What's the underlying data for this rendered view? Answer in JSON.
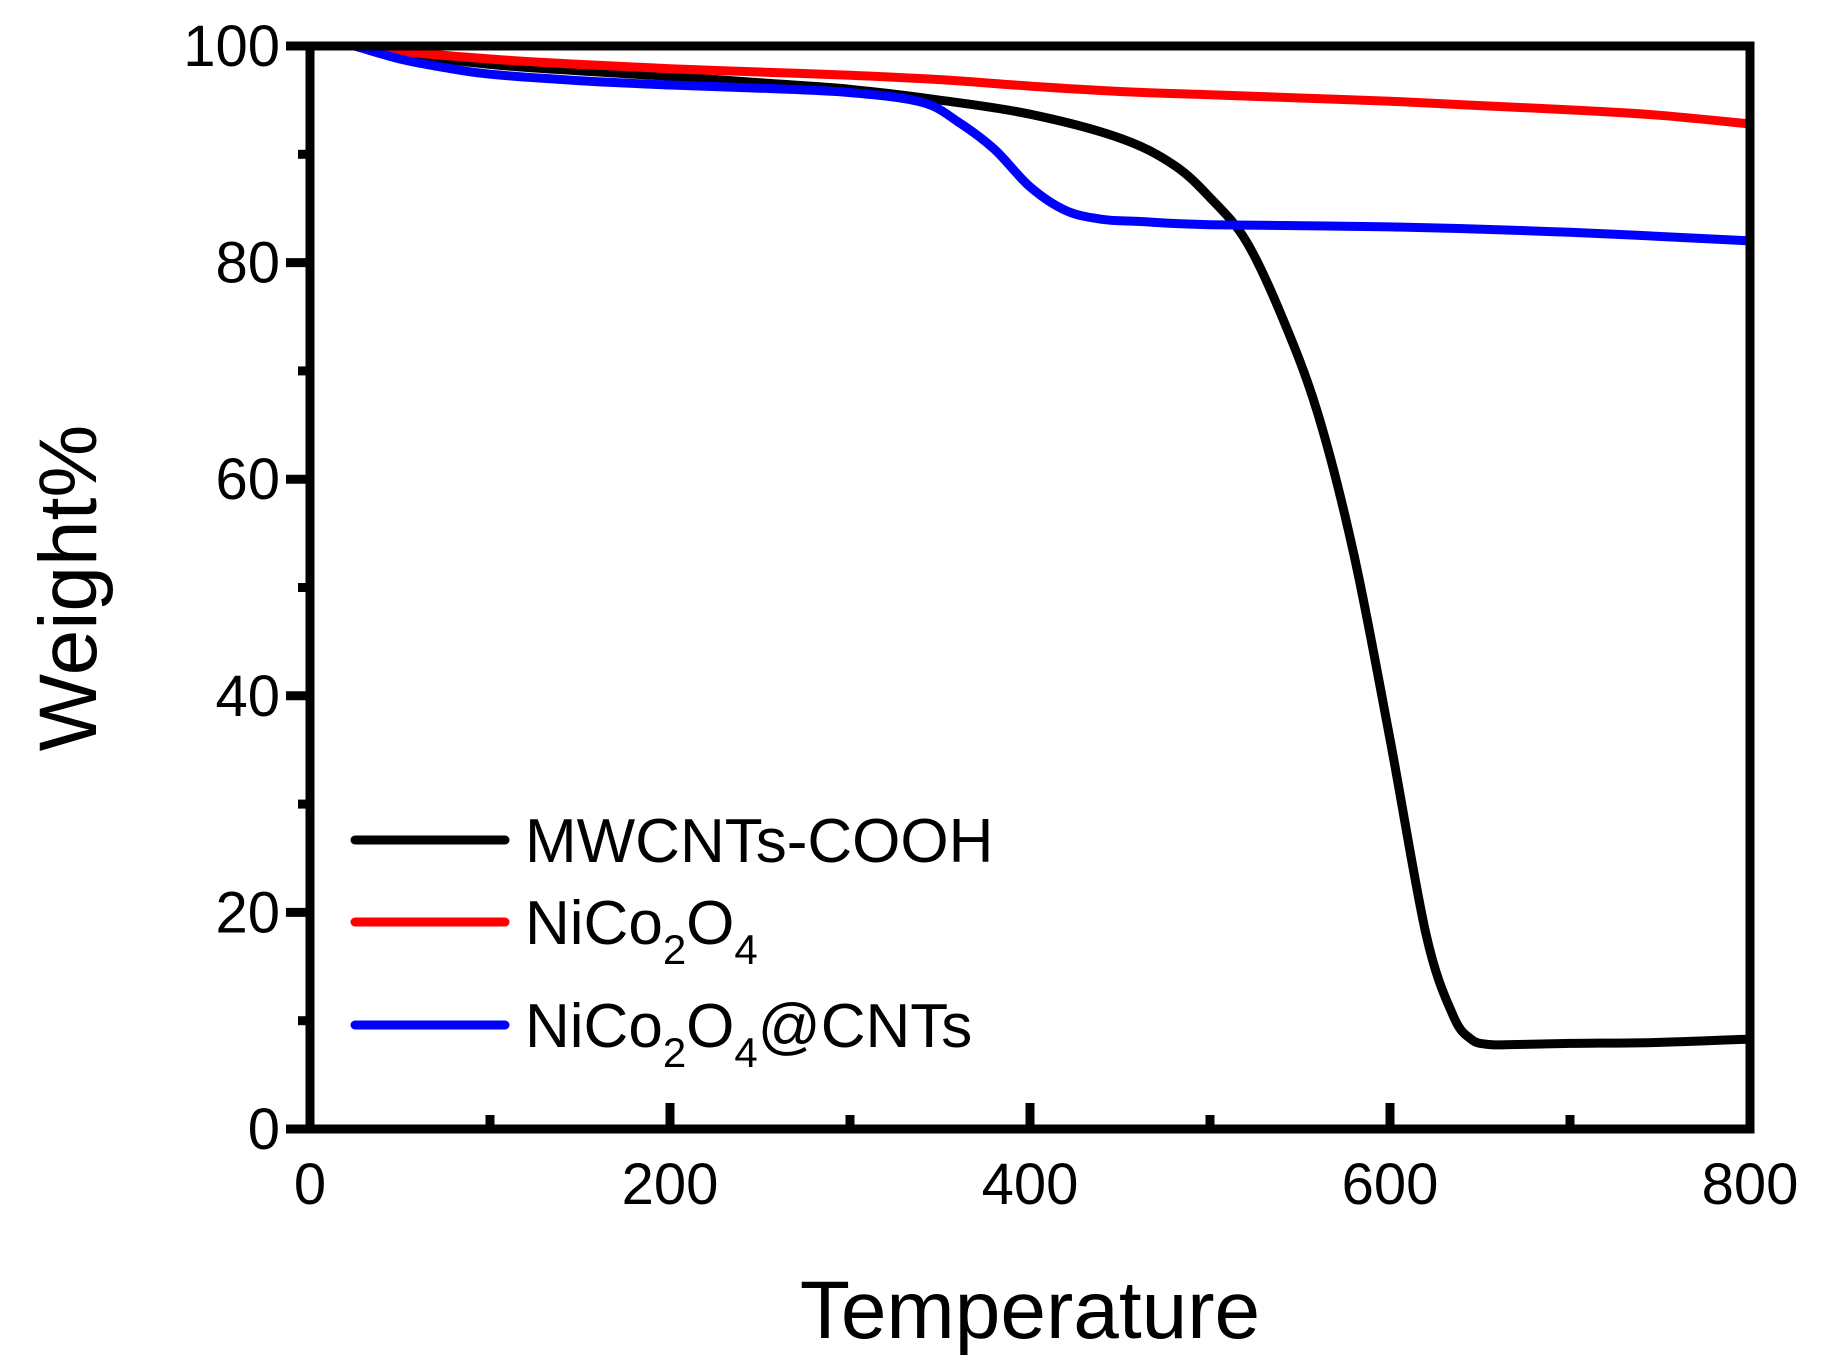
{
  "chart_data": {
    "type": "line",
    "title": "",
    "xlabel": "Temperature",
    "ylabel": "Weight%",
    "xlim": [
      0,
      800
    ],
    "ylim": [
      0,
      100
    ],
    "xticks": [
      0,
      200,
      400,
      600,
      800
    ],
    "yticks": [
      0,
      20,
      40,
      60,
      80,
      100
    ],
    "x_tick_labels": [
      "0",
      "200",
      "400",
      "600",
      "800"
    ],
    "y_tick_labels": [
      "0",
      "20",
      "40",
      "60",
      "80",
      "100"
    ],
    "legend_position": "bottom-left",
    "series": [
      {
        "name": "MWCNTs-COOH",
        "legend": {
          "main": "MWCNTs-COOH",
          "parts": []
        },
        "color": "#000000",
        "x": [
          25,
          50,
          100,
          150,
          200,
          250,
          300,
          350,
          400,
          450,
          480,
          500,
          520,
          540,
          560,
          580,
          600,
          620,
          635,
          645,
          655,
          670,
          700,
          750,
          800
        ],
        "y": [
          100,
          99.3,
          98.3,
          97.7,
          97.2,
          96.6,
          96.0,
          95.0,
          93.7,
          91.5,
          89.0,
          86.0,
          82.0,
          75.0,
          66.0,
          53.0,
          36.0,
          18.0,
          10.5,
          8.3,
          7.8,
          7.8,
          7.9,
          8.0,
          8.3
        ]
      },
      {
        "name": "NiCo2O4",
        "legend": {
          "main": "",
          "parts": [
            {
              "t": "NiCo",
              "s": false
            },
            {
              "t": "2",
              "s": true
            },
            {
              "t": "O",
              "s": false
            },
            {
              "t": "4",
              "s": true
            }
          ]
        },
        "color": "#ff0000",
        "x": [
          25,
          50,
          100,
          150,
          200,
          250,
          300,
          350,
          400,
          450,
          500,
          550,
          600,
          650,
          700,
          750,
          800
        ],
        "y": [
          100,
          99.5,
          98.8,
          98.3,
          97.9,
          97.6,
          97.3,
          96.9,
          96.3,
          95.8,
          95.5,
          95.2,
          94.9,
          94.5,
          94.1,
          93.6,
          92.8
        ]
      },
      {
        "name": "NiCo2O4@CNTs",
        "legend": {
          "main": "",
          "parts": [
            {
              "t": "NiCo",
              "s": false
            },
            {
              "t": "2",
              "s": true
            },
            {
              "t": "O",
              "s": false
            },
            {
              "t": "4",
              "s": true
            },
            {
              "t": "@CNTs",
              "s": false
            }
          ]
        },
        "color": "#0000ff",
        "x": [
          25,
          50,
          75,
          100,
          150,
          200,
          250,
          300,
          340,
          360,
          380,
          400,
          420,
          440,
          460,
          500,
          600,
          700,
          800
        ],
        "y": [
          100,
          98.8,
          98.0,
          97.4,
          96.8,
          96.4,
          96.1,
          95.7,
          94.8,
          93.0,
          90.5,
          87.0,
          84.8,
          84.0,
          83.8,
          83.5,
          83.3,
          82.8,
          82.0
        ]
      }
    ]
  }
}
